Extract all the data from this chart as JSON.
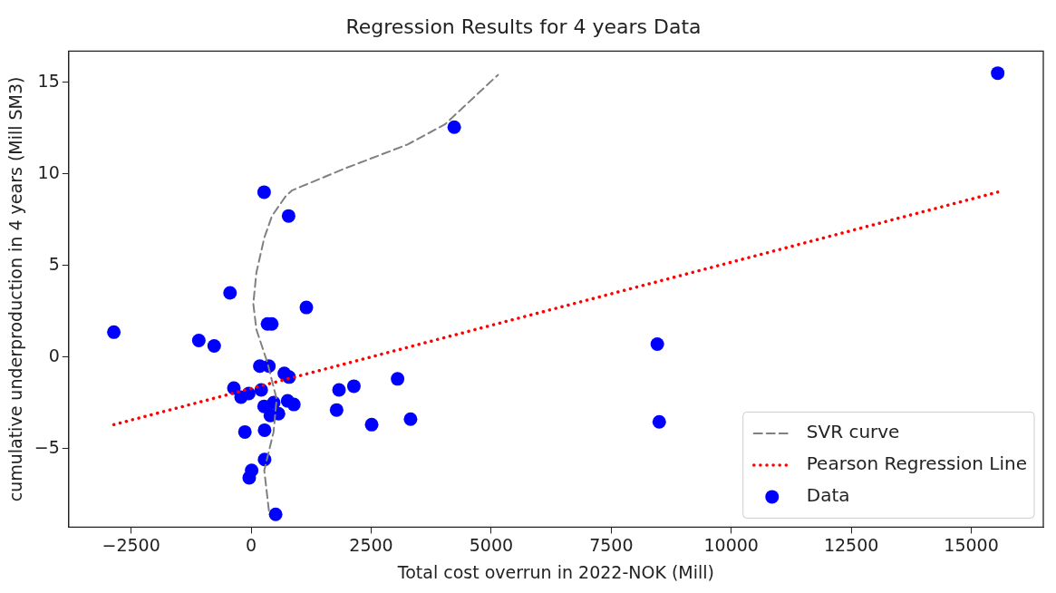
{
  "chart_data": {
    "type": "scatter",
    "title": "Regression Results for 4 years Data",
    "xlabel": "Total cost overrun in 2022-NOK (Mill)",
    "ylabel": "cumulative underproduction in 4 years (Mill SM3)",
    "xlim": [
      -3800,
      16500
    ],
    "xticks": [
      {
        "value": -2500,
        "label": "−2500"
      },
      0,
      2500,
      5000,
      7500,
      10000,
      12500,
      15000
    ],
    "ylim": [
      -9.3,
      16.7
    ],
    "yticks": [
      {
        "value": -5,
        "label": "−5"
      },
      0,
      5,
      10,
      15
    ],
    "grid": false,
    "legend": "bottom right",
    "series": [
      {
        "name": "SVR curve",
        "type": "line",
        "line_style": "dashed",
        "marker": "none",
        "color": "#808080",
        "x": [
          370,
          273,
          467,
          531,
          337,
          109,
          45,
          109,
          273,
          434,
          726,
          857,
          1959,
          3257,
          4036,
          5140
        ],
        "values": [
          -8.4,
          -6.2,
          -4.1,
          -2.3,
          -0.3,
          1.5,
          2.9,
          4.6,
          6.5,
          7.7,
          8.8,
          9.1,
          10.3,
          11.6,
          12.7,
          15.4
        ]
      },
      {
        "name": "Pearson Regression Line",
        "type": "line",
        "line_style": "dotted",
        "marker": "none",
        "color": "#ff0000",
        "x": [
          -2860,
          15550
        ],
        "values": [
          -3.7,
          9.0
        ]
      },
      {
        "name": "Data",
        "type": "scatter",
        "marker": "circle",
        "color": "#0000ff",
        "x": [
          -2860,
          270,
          780,
          -440,
          1150,
          340,
          430,
          -1090,
          -770,
          180,
          370,
          690,
          790,
          -360,
          -210,
          -50,
          210,
          1830,
          2140,
          1780,
          2510,
          270,
          470,
          760,
          890,
          400,
          570,
          -130,
          280,
          280,
          10,
          -40,
          510,
          3050,
          3320,
          4230,
          8460,
          8500,
          15550
        ],
        "values": [
          1.35,
          9.0,
          7.7,
          3.5,
          2.7,
          1.8,
          1.8,
          0.9,
          0.6,
          -0.5,
          -0.5,
          -0.9,
          -1.1,
          -1.7,
          -2.2,
          -2.0,
          -1.8,
          -1.8,
          -1.6,
          -2.9,
          -3.7,
          -2.7,
          -2.5,
          -2.4,
          -2.6,
          -3.2,
          -3.1,
          -4.1,
          -4.0,
          -5.6,
          -6.2,
          -6.6,
          -8.6,
          -1.2,
          -3.4,
          12.55,
          0.7,
          -3.55,
          15.5
        ]
      }
    ]
  }
}
